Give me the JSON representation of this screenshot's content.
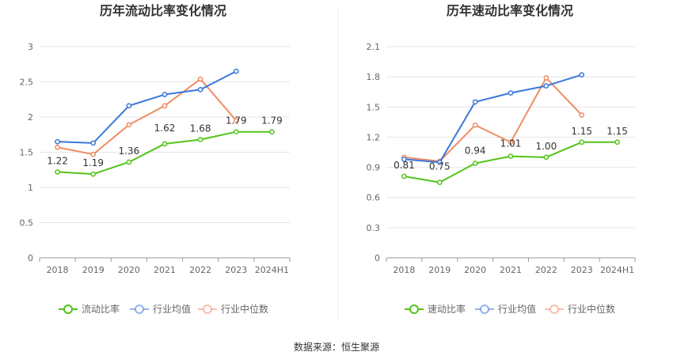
{
  "source_text": "数据来源：恒生聚源",
  "colors": {
    "main": "#52c41a",
    "avg": "#3a78d8",
    "median": "#f08c64",
    "grid": "#e6e6e6",
    "axis": "#999999"
  },
  "chart_data": [
    {
      "type": "line",
      "title": "历年流动比率变化情况",
      "categories": [
        "2018",
        "2019",
        "2020",
        "2021",
        "2022",
        "2023",
        "2024H1"
      ],
      "ylim": [
        0,
        3
      ],
      "yticks": [
        "0",
        "0.5",
        "1",
        "1.5",
        "2",
        "2.5",
        "3"
      ],
      "grid": true,
      "legend_position": "bottom",
      "series": [
        {
          "name": "流动比率",
          "values": [
            1.22,
            1.19,
            1.36,
            1.62,
            1.68,
            1.79,
            1.79
          ],
          "labels": [
            "1.22",
            "1.19",
            "1.36",
            "1.62",
            "1.68",
            "1.79",
            "1.79"
          ]
        },
        {
          "name": "行业均值",
          "values": [
            1.65,
            1.63,
            2.16,
            2.32,
            2.39,
            2.65,
            null
          ]
        },
        {
          "name": "行业中位数",
          "values": [
            1.57,
            1.47,
            1.89,
            2.16,
            2.54,
            1.95,
            null
          ]
        }
      ]
    },
    {
      "type": "line",
      "title": "历年速动比率变化情况",
      "categories": [
        "2018",
        "2019",
        "2020",
        "2021",
        "2022",
        "2023",
        "2024H1"
      ],
      "ylim": [
        0,
        2.1
      ],
      "yticks": [
        "0",
        "0.3",
        "0.6",
        "0.9",
        "1.2",
        "1.5",
        "1.8",
        "2.1"
      ],
      "grid": true,
      "legend_position": "bottom",
      "series": [
        {
          "name": "速动比率",
          "values": [
            0.81,
            0.75,
            0.94,
            1.01,
            1.0,
            1.15,
            1.15
          ],
          "labels": [
            "0.81",
            "0.75",
            "0.94",
            "1.01",
            "1.00",
            "1.15",
            "1.15"
          ]
        },
        {
          "name": "行业均值",
          "values": [
            0.98,
            0.95,
            1.55,
            1.64,
            1.71,
            1.82,
            null
          ]
        },
        {
          "name": "行业中位数",
          "values": [
            1.0,
            0.96,
            1.32,
            1.15,
            1.79,
            1.42,
            null
          ]
        }
      ]
    }
  ]
}
